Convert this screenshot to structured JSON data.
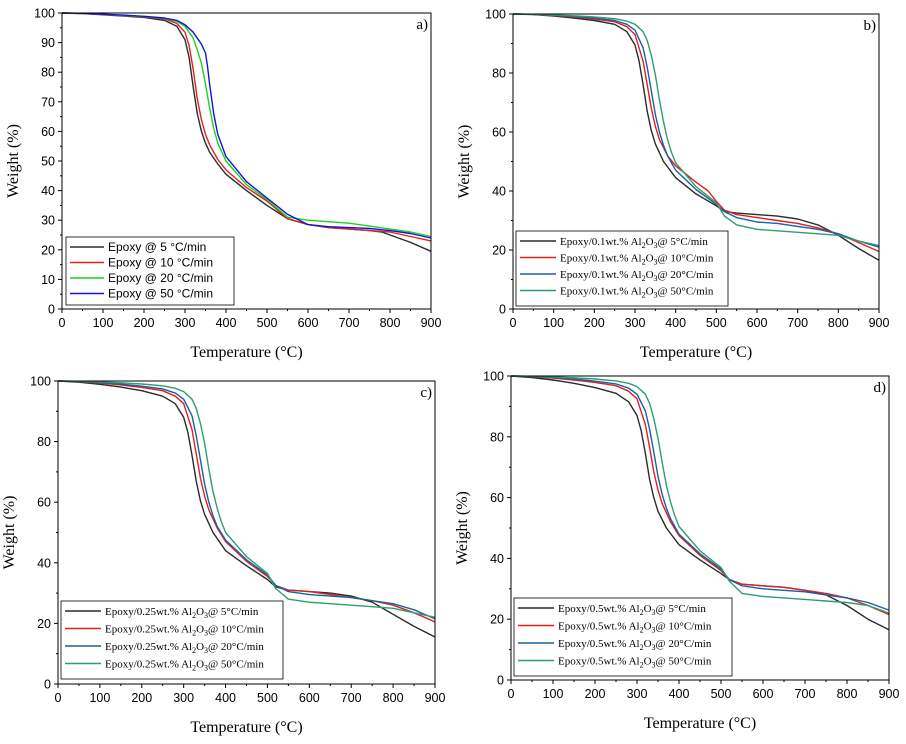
{
  "figure": {
    "type": "multi-panel TGA thermograms"
  },
  "chart_data": [
    {
      "type": "line",
      "panel_label": "a)",
      "xlabel": "Temperature (°C)",
      "ylabel": "Weight (%)",
      "xlim": [
        0,
        900
      ],
      "ylim": [
        0,
        100
      ],
      "xticks": [
        0,
        100,
        200,
        300,
        400,
        500,
        600,
        700,
        800,
        900
      ],
      "yticks": [
        0,
        10,
        20,
        30,
        40,
        50,
        60,
        70,
        80,
        90,
        100
      ],
      "legend_position": "bottom-left",
      "legend_font": "sans",
      "series": [
        {
          "name": "Epoxy @ 5 °C/min",
          "color": "#2b2b2b",
          "x": [
            0,
            50,
            100,
            150,
            200,
            250,
            280,
            300,
            310,
            320,
            330,
            340,
            350,
            360,
            380,
            400,
            450,
            500,
            550,
            600,
            650,
            700,
            750,
            780,
            800,
            850,
            900
          ],
          "y": [
            100,
            99.8,
            99.4,
            99,
            98.5,
            97.5,
            95.5,
            91,
            85,
            75,
            66,
            60,
            56,
            53,
            49,
            45.5,
            40,
            35,
            30.5,
            28.5,
            27.5,
            27,
            26.5,
            26,
            25,
            22.5,
            19.5
          ]
        },
        {
          "name": "Epoxy @ 10 °C/min",
          "color": "#e02020",
          "x": [
            0,
            50,
            100,
            150,
            200,
            250,
            280,
            300,
            310,
            320,
            330,
            340,
            350,
            360,
            380,
            400,
            450,
            500,
            550,
            600,
            650,
            700,
            750,
            800,
            850,
            900
          ],
          "y": [
            100,
            99.8,
            99.5,
            99.1,
            98.7,
            98,
            96.5,
            93.5,
            89,
            81,
            71,
            64,
            59,
            55.5,
            50.5,
            47,
            41,
            36.5,
            30.5,
            28.5,
            27.5,
            27,
            26.5,
            26,
            24.5,
            23
          ]
        },
        {
          "name": "Epoxy @ 20 °C/min",
          "color": "#1fd11f",
          "x": [
            0,
            50,
            100,
            150,
            200,
            250,
            280,
            300,
            320,
            330,
            340,
            350,
            360,
            370,
            380,
            400,
            450,
            500,
            550,
            600,
            650,
            700,
            750,
            800,
            850,
            900
          ],
          "y": [
            100,
            99.9,
            99.6,
            99.2,
            98.8,
            98.2,
            97.2,
            95.5,
            91.5,
            87.5,
            83,
            76,
            68,
            61,
            56,
            50,
            42,
            37,
            31,
            30,
            29.5,
            29,
            28,
            27,
            26,
            24.5
          ]
        },
        {
          "name": "Epoxy @ 50 °C/min",
          "color": "#1414d8",
          "x": [
            0,
            50,
            100,
            150,
            200,
            250,
            280,
            300,
            320,
            330,
            340,
            350,
            355,
            360,
            370,
            380,
            400,
            450,
            500,
            550,
            600,
            650,
            700,
            750,
            800,
            850,
            900
          ],
          "y": [
            100,
            99.9,
            99.6,
            99.3,
            98.9,
            98.3,
            97.5,
            96,
            93.5,
            91.5,
            89.5,
            86.5,
            82,
            76,
            66,
            59,
            51.5,
            43,
            37.5,
            32,
            28.5,
            27.8,
            27.5,
            27.2,
            26.5,
            25.5,
            24
          ]
        }
      ]
    },
    {
      "type": "line",
      "panel_label": "b)",
      "xlabel": "Temperature (°C)",
      "ylabel": "Weight (%)",
      "xlim": [
        0,
        900
      ],
      "ylim": [
        0,
        100
      ],
      "xticks": [
        0,
        100,
        200,
        300,
        400,
        500,
        600,
        700,
        800,
        900
      ],
      "yticks": [
        0,
        20,
        40,
        60,
        80,
        100
      ],
      "legend_position": "bottom-left",
      "legend_font": "serif",
      "series": [
        {
          "name_pre": "Epoxy/0.1wt.% Al",
          "name_post": "@ 5°C/min",
          "color": "#2b2b2b",
          "x": [
            0,
            50,
            100,
            150,
            200,
            250,
            280,
            300,
            310,
            320,
            330,
            340,
            350,
            370,
            400,
            450,
            500,
            520,
            550,
            600,
            650,
            700,
            750,
            800,
            850,
            900
          ],
          "y": [
            100,
            99.8,
            99.3,
            98.6,
            97.8,
            96.5,
            94,
            89.5,
            84,
            76,
            67,
            60.5,
            56,
            50,
            44.5,
            39,
            35,
            33,
            32.5,
            32,
            31.5,
            30.5,
            28.5,
            25,
            20.5,
            16.5
          ]
        },
        {
          "name_pre": "Epoxy/0.1wt.% Al",
          "name_post": "@ 10°C/min",
          "color": "#e02020",
          "x": [
            0,
            50,
            100,
            150,
            200,
            250,
            280,
            300,
            320,
            330,
            340,
            350,
            360,
            380,
            400,
            450,
            480,
            500,
            520,
            550,
            600,
            650,
            700,
            750,
            800,
            850,
            900
          ],
          "y": [
            100,
            99.9,
            99.5,
            99,
            98.3,
            97.4,
            95.7,
            93,
            84,
            76,
            68,
            62,
            57.5,
            52,
            48.5,
            43,
            40,
            36.5,
            33.5,
            32,
            31,
            30,
            29,
            27.5,
            25.5,
            22.5,
            19.5
          ]
        },
        {
          "name_pre": "Epoxy/0.1wt.% Al",
          "name_post": "@ 20°C/min",
          "color": "#1d5fa3",
          "x": [
            0,
            50,
            100,
            150,
            200,
            250,
            280,
            300,
            320,
            330,
            340,
            350,
            360,
            370,
            380,
            400,
            450,
            500,
            520,
            550,
            600,
            650,
            700,
            750,
            800,
            850,
            900
          ],
          "y": [
            100,
            99.9,
            99.6,
            99.2,
            98.6,
            97.8,
            96.5,
            94.5,
            88.5,
            82,
            74,
            66,
            60,
            55.5,
            52,
            47,
            40.5,
            35.5,
            33,
            31,
            29.5,
            29,
            28,
            27,
            25.5,
            23,
            21
          ]
        },
        {
          "name_pre": "Epoxy/0.1wt.% Al",
          "name_post": "@ 50°C/min",
          "color": "#2e9e6e",
          "x": [
            0,
            50,
            100,
            150,
            200,
            250,
            280,
            300,
            320,
            330,
            340,
            350,
            360,
            370,
            380,
            390,
            400,
            450,
            500,
            520,
            550,
            600,
            650,
            700,
            750,
            800,
            850,
            900
          ],
          "y": [
            100,
            99.9,
            99.7,
            99.4,
            99,
            98.4,
            97.6,
            96.5,
            94,
            91,
            86,
            79.5,
            71,
            63.5,
            57.5,
            53,
            49.5,
            41.5,
            36,
            31.5,
            28.5,
            27,
            26.5,
            26,
            25.5,
            25,
            23,
            21.5
          ]
        }
      ]
    },
    {
      "type": "line",
      "panel_label": "c)",
      "xlabel": "Temperature (°C)",
      "ylabel": "Weight (%)",
      "xlim": [
        0,
        900
      ],
      "ylim": [
        0,
        100
      ],
      "xticks": [
        0,
        100,
        200,
        300,
        400,
        500,
        600,
        700,
        800,
        900
      ],
      "yticks": [
        0,
        20,
        40,
        60,
        80,
        100
      ],
      "legend_position": "bottom-left",
      "legend_font": "serif",
      "series": [
        {
          "name_pre": "Epoxy/0.25wt.% Al",
          "name_post": "@ 5°C/min",
          "color": "#2b2b2b",
          "x": [
            0,
            50,
            100,
            150,
            200,
            250,
            280,
            300,
            310,
            320,
            330,
            340,
            350,
            370,
            400,
            450,
            500,
            520,
            550,
            600,
            650,
            700,
            750,
            800,
            850,
            900
          ],
          "y": [
            100,
            99.6,
            98.9,
            98,
            96.8,
            95,
            92.5,
            88,
            83,
            75.5,
            67,
            60.5,
            56,
            50,
            44,
            39,
            34.5,
            32,
            31,
            30.5,
            30,
            29,
            27,
            23,
            19,
            15.5
          ]
        },
        {
          "name_pre": "Epoxy/0.25wt.% Al",
          "name_post": "@ 10°C/min",
          "color": "#e02020",
          "x": [
            0,
            50,
            100,
            150,
            200,
            250,
            280,
            300,
            320,
            330,
            340,
            350,
            360,
            380,
            400,
            450,
            500,
            520,
            550,
            600,
            650,
            700,
            750,
            800,
            850,
            900
          ],
          "y": [
            100,
            99.8,
            99.3,
            98.7,
            97.9,
            96.8,
            95,
            92.5,
            84,
            76,
            68,
            62,
            57.5,
            51.5,
            47,
            40.5,
            35.5,
            32.5,
            31,
            30.5,
            29.5,
            28.5,
            27.5,
            26,
            23.5,
            20.5
          ]
        },
        {
          "name_pre": "Epoxy/0.25wt.% Al",
          "name_post": "@ 20°C/min",
          "color": "#1d5fa3",
          "x": [
            0,
            50,
            100,
            150,
            200,
            250,
            280,
            300,
            320,
            330,
            340,
            350,
            360,
            370,
            380,
            400,
            450,
            500,
            520,
            550,
            600,
            650,
            700,
            750,
            800,
            850,
            900
          ],
          "y": [
            100,
            99.9,
            99.5,
            99,
            98.3,
            97.4,
            96,
            94,
            88.5,
            82,
            74,
            66,
            60,
            55.5,
            52,
            47.5,
            41,
            36,
            32.5,
            30.5,
            29.5,
            29,
            28.5,
            27.5,
            26.5,
            24.5,
            21.5
          ]
        },
        {
          "name_pre": "Epoxy/0.25wt.% Al",
          "name_post": "@ 50°C/min",
          "color": "#2e9e6e",
          "x": [
            0,
            50,
            100,
            150,
            200,
            250,
            280,
            300,
            320,
            330,
            340,
            350,
            360,
            370,
            380,
            390,
            400,
            450,
            500,
            520,
            550,
            600,
            650,
            700,
            750,
            800,
            850,
            900
          ],
          "y": [
            100,
            99.9,
            99.7,
            99.4,
            99,
            98.4,
            97.6,
            96.5,
            94,
            91,
            86,
            79.5,
            71,
            63.5,
            58,
            53.5,
            50,
            42,
            36.5,
            31.5,
            28,
            27,
            26.5,
            26,
            25.5,
            25,
            23.5,
            22
          ]
        }
      ]
    },
    {
      "type": "line",
      "panel_label": "d)",
      "xlabel": "Temperature (°C)",
      "ylabel": "Weight (%)",
      "xlim": [
        0,
        900
      ],
      "ylim": [
        0,
        100
      ],
      "xticks": [
        0,
        100,
        200,
        300,
        400,
        500,
        600,
        700,
        800,
        900
      ],
      "yticks": [
        0,
        20,
        40,
        60,
        80,
        100
      ],
      "legend_position": "bottom-left",
      "legend_font": "serif",
      "series": [
        {
          "name_pre": "Epoxy/0.5wt.% Al",
          "name_post": "@ 5°C/min",
          "color": "#2b2b2b",
          "x": [
            0,
            50,
            100,
            150,
            200,
            250,
            280,
            300,
            310,
            320,
            330,
            340,
            350,
            370,
            400,
            450,
            500,
            520,
            550,
            600,
            650,
            700,
            750,
            800,
            850,
            900
          ],
          "y": [
            100,
            99.5,
            98.7,
            97.6,
            96.2,
            94.3,
            91.5,
            87,
            82,
            74.5,
            66,
            60,
            55.5,
            50,
            44.5,
            39.5,
            35,
            33,
            31.5,
            31,
            30.5,
            29.5,
            28,
            24.5,
            20,
            16.5
          ]
        },
        {
          "name_pre": "Epoxy/0.5wt.% Al",
          "name_post": "@ 10°C/min",
          "color": "#e02020",
          "x": [
            0,
            50,
            100,
            150,
            200,
            250,
            280,
            300,
            320,
            330,
            340,
            350,
            360,
            380,
            400,
            450,
            500,
            520,
            550,
            600,
            650,
            700,
            750,
            800,
            850,
            900
          ],
          "y": [
            100,
            99.8,
            99.3,
            98.7,
            97.9,
            96.8,
            95,
            92.5,
            84,
            76.5,
            68.5,
            62.5,
            58,
            52,
            47.5,
            41,
            36,
            33,
            31.5,
            31,
            30.5,
            29.5,
            28.5,
            27,
            24.5,
            21.5
          ]
        },
        {
          "name_pre": "Epoxy/0.5wt.% Al",
          "name_post": "@ 20°C/min",
          "color": "#1d5fa3",
          "x": [
            0,
            50,
            100,
            150,
            200,
            250,
            280,
            300,
            320,
            330,
            340,
            350,
            360,
            370,
            380,
            400,
            450,
            500,
            520,
            550,
            600,
            650,
            700,
            750,
            800,
            850,
            900
          ],
          "y": [
            100,
            99.9,
            99.5,
            99,
            98.3,
            97.4,
            96,
            94,
            88.5,
            82.5,
            75,
            67,
            61,
            56.5,
            53,
            48,
            41.5,
            36.5,
            33,
            31,
            30,
            29.5,
            29,
            28,
            27,
            25.5,
            23
          ]
        },
        {
          "name_pre": "Epoxy/0.5wt.% Al",
          "name_post": "@ 50°C/min",
          "color": "#2e9e6e",
          "x": [
            0,
            50,
            100,
            150,
            200,
            250,
            280,
            300,
            320,
            330,
            340,
            350,
            360,
            370,
            380,
            390,
            400,
            450,
            500,
            520,
            550,
            600,
            650,
            700,
            750,
            800,
            850,
            900
          ],
          "y": [
            100,
            99.9,
            99.7,
            99.4,
            99,
            98.4,
            97.6,
            96.5,
            94,
            91,
            86,
            79.5,
            71.5,
            64,
            58.5,
            54,
            50.5,
            42.5,
            37,
            32.5,
            28.5,
            27.5,
            27,
            26.5,
            26,
            25.5,
            24.5,
            22
          ]
        }
      ]
    }
  ]
}
